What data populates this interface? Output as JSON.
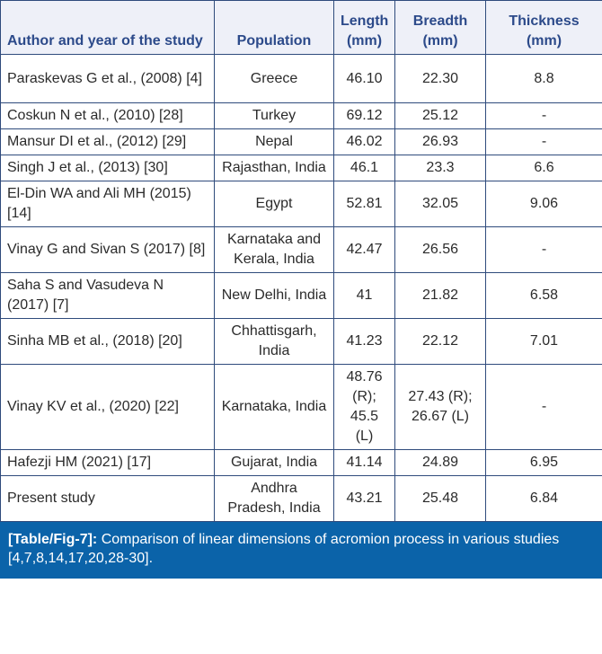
{
  "table": {
    "headers": [
      "Author and year of the study",
      "Population",
      "Length (mm)",
      "Breadth (mm)",
      "Thickness (mm)"
    ],
    "rows": [
      {
        "author": "Paraskevas G et al., (2008) [4]",
        "population": "Greece",
        "length": "46.10",
        "breadth": "22.30",
        "thickness": "8.8"
      },
      {
        "author": "Coskun N et al., (2010) [28]",
        "population": "Turkey",
        "length": "69.12",
        "breadth": "25.12",
        "thickness": "-"
      },
      {
        "author": "Mansur DI et al., (2012) [29]",
        "population": "Nepal",
        "length": "46.02",
        "breadth": "26.93",
        "thickness": "-"
      },
      {
        "author": "Singh J et al., (2013) [30]",
        "population": "Rajasthan, India",
        "length": "46.1",
        "breadth": "23.3",
        "thickness": "6.6"
      },
      {
        "author": "El-Din WA and Ali MH (2015) [14]",
        "population": "Egypt",
        "length": "52.81",
        "breadth": "32.05",
        "thickness": "9.06"
      },
      {
        "author": "Vinay G and Sivan S (2017) [8]",
        "population": "Karnataka and Kerala, India",
        "length": "42.47",
        "breadth": "26.56",
        "thickness": "-"
      },
      {
        "author": "Saha S and Vasudeva N (2017) [7]",
        "population": "New Delhi, India",
        "length": "41",
        "breadth": "21.82",
        "thickness": "6.58"
      },
      {
        "author": "Sinha MB et al., (2018) [20]",
        "population": "Chhattisgarh, India",
        "length": "41.23",
        "breadth": "22.12",
        "thickness": "7.01"
      },
      {
        "author": "Vinay KV et al., (2020) [22]",
        "population": "Karnataka, India",
        "length": "48.76 (R); 45.5 (L)",
        "breadth": "27.43 (R); 26.67 (L)",
        "thickness": "-"
      },
      {
        "author": "Hafezji HM (2021) [17]",
        "population": "Gujarat, India",
        "length": "41.14",
        "breadth": "24.89",
        "thickness": "6.95"
      },
      {
        "author": "Present study",
        "population": "Andhra Pradesh, India",
        "length": "43.21",
        "breadth": "25.48",
        "thickness": "6.84"
      }
    ]
  },
  "caption": {
    "label": "[Table/Fig-7]:",
    "text": " Comparison of linear dimensions of acromion process in various studies [4,7,8,14,17,20,28-30]."
  },
  "colors": {
    "header_bg": "#eef0f8",
    "header_text": "#2c4a8a",
    "border": "#2f4b7c",
    "caption_bg": "#0b63a9"
  }
}
